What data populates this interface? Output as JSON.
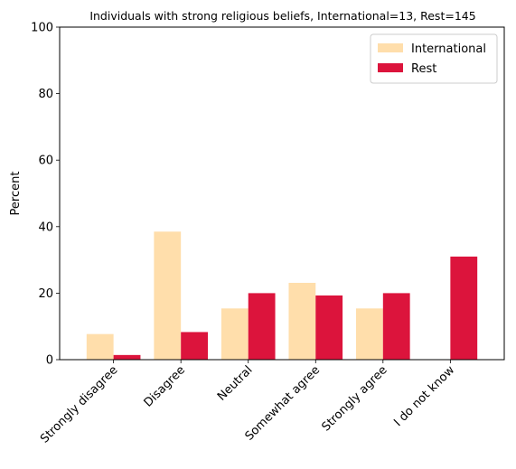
{
  "chart_data": {
    "type": "bar",
    "title": "Individuals with strong religious beliefs, International=13, Rest=145",
    "xlabel": "",
    "ylabel": "Percent",
    "ylim": [
      0,
      100
    ],
    "yticks": [
      0,
      20,
      40,
      60,
      80,
      100
    ],
    "categories": [
      "Strongly disagree",
      "Disagree",
      "Neutral",
      "Somewhat agree",
      "Strongly agree",
      "I do not know"
    ],
    "series": [
      {
        "name": "International",
        "color": "#ffdeab",
        "values": [
          7.7,
          38.5,
          15.4,
          23.1,
          15.4,
          0
        ]
      },
      {
        "name": "Rest",
        "color": "#dc143c",
        "values": [
          1.4,
          8.3,
          20.0,
          19.3,
          20.0,
          31.0
        ]
      }
    ],
    "legend_position": "top-right",
    "grid": false
  }
}
